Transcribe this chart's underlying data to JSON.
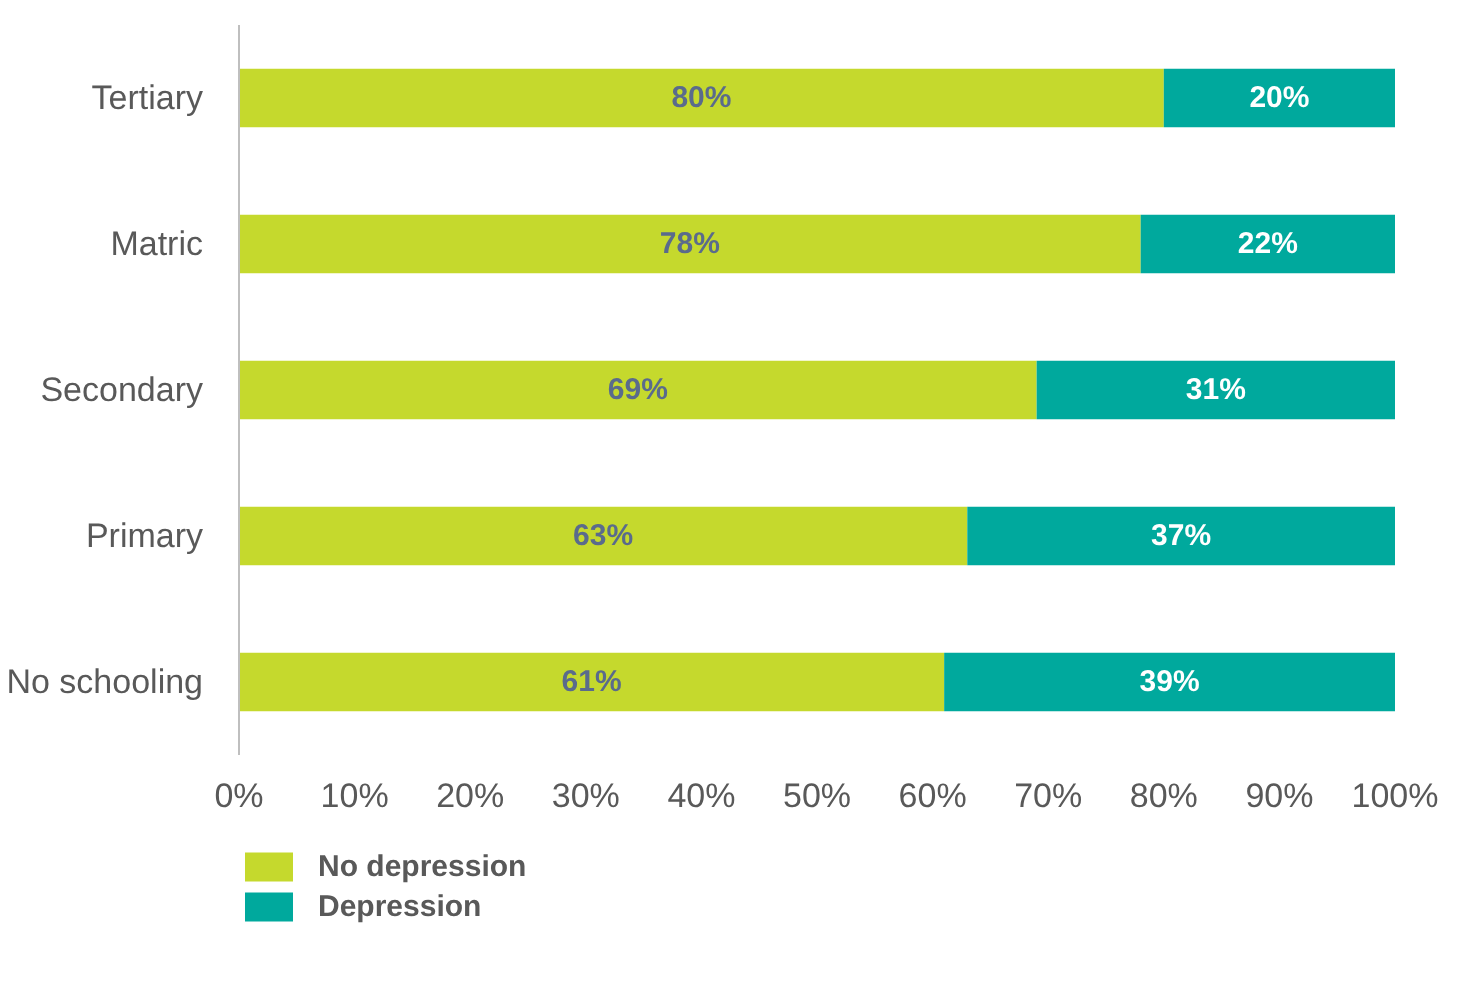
{
  "chart_data": {
    "type": "bar",
    "orientation": "horizontal",
    "stacked": true,
    "categories": [
      "Tertiary",
      "Matric",
      "Secondary",
      "Primary",
      "No schooling"
    ],
    "series": [
      {
        "name": "No depression",
        "color": "#c5d92d",
        "values": [
          80,
          78,
          69,
          63,
          61
        ],
        "value_labels": [
          "80%",
          "78%",
          "69%",
          "63%",
          "61%"
        ]
      },
      {
        "name": "Depression",
        "color": "#00a99d",
        "values": [
          20,
          22,
          31,
          37,
          39
        ],
        "value_labels": [
          "20%",
          "22%",
          "31%",
          "37%",
          "39%"
        ]
      }
    ],
    "xlim": [
      0,
      100
    ],
    "xticks": [
      {
        "value": 0,
        "label": "0%"
      },
      {
        "value": 10,
        "label": "10%"
      },
      {
        "value": 20,
        "label": "20%"
      },
      {
        "value": 30,
        "label": "30%"
      },
      {
        "value": 40,
        "label": "40%"
      },
      {
        "value": 50,
        "label": "50%"
      },
      {
        "value": 60,
        "label": "60%"
      },
      {
        "value": 70,
        "label": "70%"
      },
      {
        "value": 80,
        "label": "80%"
      },
      {
        "value": 90,
        "label": "90%"
      },
      {
        "value": 100,
        "label": "100%"
      }
    ],
    "grid": false,
    "legend": "bottom left"
  }
}
